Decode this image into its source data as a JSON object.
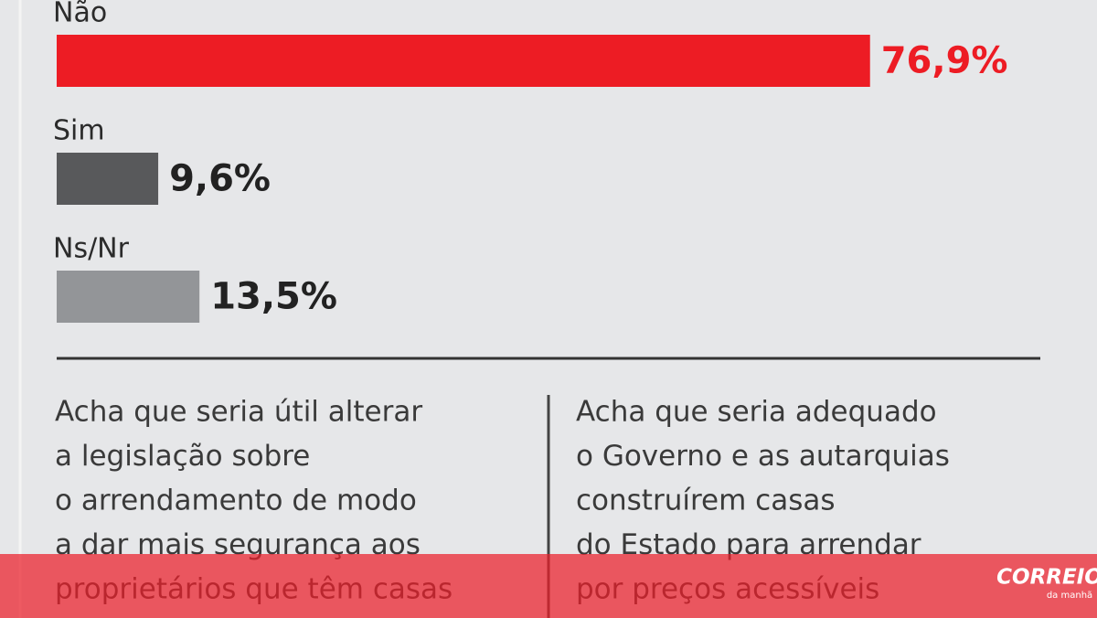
{
  "chart_data": {
    "type": "bar",
    "orientation": "horizontal",
    "categories": [
      "Não",
      "Sim",
      "Ns/Nr"
    ],
    "values": [
      76.9,
      9.6,
      13.5
    ],
    "value_labels": [
      "76,9%",
      "9,6%",
      "13,5%"
    ],
    "colors": [
      "#ed1c24",
      "#58595b",
      "#939598"
    ],
    "value_label_colors": [
      "#ed1c24",
      "#222222",
      "#222222"
    ]
  },
  "questions": [
    {
      "lines": [
        "Acha que seria útil alterar",
        "a legislação sobre",
        "o arrendamento de modo",
        "a dar mais segurança aos",
        "proprietários que têm casas"
      ]
    },
    {
      "lines": [
        "Acha que seria adequado",
        "o Governo e as autarquias",
        "construírem casas",
        "do Estado para arrendar",
        "por preços  acessíveis"
      ]
    }
  ],
  "logo": {
    "name": "CORREIO",
    "tagline": "da manhã"
  }
}
